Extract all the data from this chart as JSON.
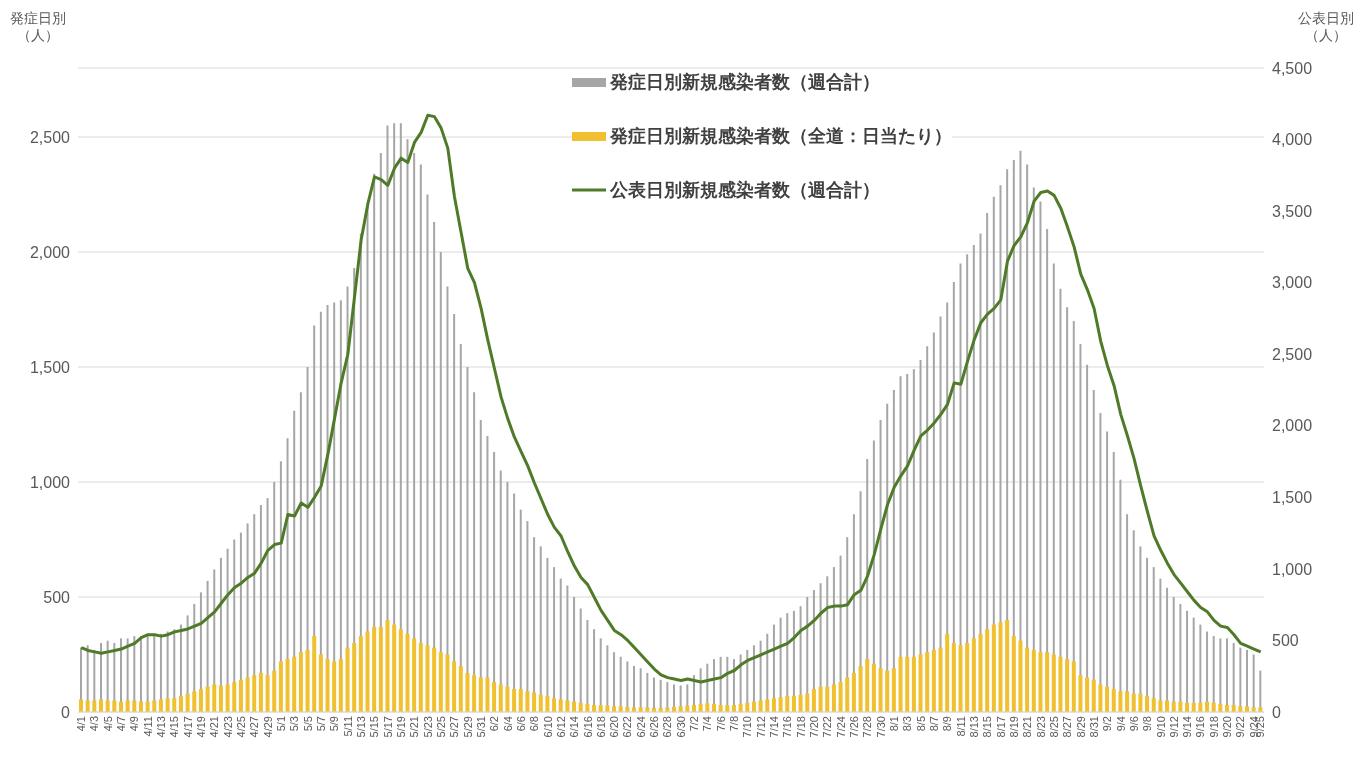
{
  "chart_data": {
    "type": "bar",
    "ylabel": "発症日別（人）",
    "y2label": "公表日別（人）",
    "categories": [
      "4/1",
      null,
      "4/3",
      null,
      "4/5",
      null,
      "4/7",
      null,
      "4/9",
      null,
      "4/11",
      null,
      "4/13",
      null,
      "4/15",
      null,
      "4/17",
      null,
      "4/19",
      null,
      "4/21",
      null,
      "4/23",
      null,
      "4/25",
      null,
      "4/27",
      null,
      "4/29",
      null,
      "5/1",
      null,
      "5/3",
      null,
      "5/5",
      null,
      "5/7",
      null,
      "5/9",
      null,
      "5/11",
      null,
      "5/13",
      null,
      "5/15",
      null,
      "5/17",
      null,
      "5/19",
      null,
      "5/21",
      null,
      "5/23",
      null,
      "5/25",
      null,
      "5/27",
      null,
      "5/29",
      null,
      "5/31",
      null,
      "6/2",
      null,
      "6/4",
      null,
      "6/6",
      null,
      "6/8",
      null,
      "6/10",
      null,
      "6/12",
      null,
      "6/14",
      null,
      "6/16",
      null,
      "6/18",
      null,
      "6/20",
      null,
      "6/22",
      null,
      "6/24",
      null,
      "6/26",
      null,
      "6/28",
      null,
      "6/30",
      null,
      "7/2",
      null,
      "7/4",
      null,
      "7/6",
      null,
      "7/8",
      null,
      "7/10",
      null,
      "7/12",
      null,
      "7/14",
      null,
      "7/16",
      null,
      "7/18",
      null,
      "7/20",
      null,
      "7/22",
      null,
      "7/24",
      null,
      "7/26",
      null,
      "7/28",
      null,
      "7/30",
      null,
      "8/1",
      null,
      "8/3",
      null,
      "8/5",
      null,
      "8/7",
      null,
      "8/9",
      null,
      "8/11",
      null,
      "8/13",
      null,
      "8/15",
      null,
      "8/17",
      null,
      "8/19",
      null,
      "8/21",
      null,
      "8/23",
      null,
      "8/25",
      null,
      "8/27",
      null,
      "8/29",
      null,
      "8/31",
      null,
      "9/2",
      null,
      "9/4",
      null,
      "9/6",
      null,
      "9/8",
      null,
      "9/10",
      null,
      "9/12",
      null,
      "9/14",
      null,
      "9/16",
      null,
      "9/18",
      null,
      "9/20",
      null,
      "9/22",
      null,
      "9/24",
      "9/25"
    ],
    "series": [
      {
        "name": "発症日別新規感染者数（週合計）",
        "color": "#a6a6a6",
        "values": [
          280,
          290,
          270,
          300,
          310,
          300,
          320,
          320,
          330,
          330,
          340,
          330,
          340,
          350,
          360,
          380,
          420,
          470,
          520,
          570,
          620,
          670,
          710,
          750,
          780,
          820,
          860,
          900,
          930,
          1000,
          1090,
          1190,
          1310,
          1390,
          1500,
          1680,
          1740,
          1770,
          1780,
          1790,
          1850,
          1930,
          2080,
          2200,
          2340,
          2430,
          2550,
          2560,
          2560,
          2490,
          2430,
          2380,
          2250,
          2130,
          2000,
          1850,
          1730,
          1600,
          1500,
          1390,
          1270,
          1200,
          1130,
          1050,
          1000,
          950,
          880,
          830,
          760,
          720,
          670,
          630,
          580,
          550,
          500,
          450,
          400,
          360,
          320,
          290,
          260,
          240,
          220,
          200,
          190,
          170,
          150,
          140,
          130,
          120,
          115,
          120,
          160,
          190,
          210,
          230,
          240,
          240,
          230,
          250,
          270,
          290,
          310,
          340,
          380,
          410,
          430,
          440,
          460,
          500,
          530,
          560,
          590,
          630,
          680,
          760,
          860,
          960,
          1100,
          1180,
          1270,
          1340,
          1400,
          1460,
          1470,
          1490,
          1530,
          1590,
          1650,
          1720,
          1780,
          1870,
          1950,
          1990,
          2030,
          2080,
          2170,
          2240,
          2290,
          2360,
          2400,
          2440,
          2380,
          2280,
          2220,
          2100,
          1950,
          1840,
          1760,
          1700,
          1600,
          1510,
          1400,
          1300,
          1220,
          1130,
          1010,
          860,
          790,
          720,
          670,
          630,
          580,
          540,
          500,
          470,
          440,
          410,
          380,
          350,
          330,
          320,
          320,
          300,
          280,
          270,
          250,
          180
        ]
      },
      {
        "name": "発症日別新規感染者数（全道：日当たり）",
        "color": "#f0c030",
        "values": [
          55,
          50,
          50,
          55,
          50,
          50,
          45,
          50,
          50,
          45,
          45,
          50,
          55,
          60,
          60,
          70,
          80,
          90,
          100,
          110,
          120,
          115,
          120,
          130,
          140,
          150,
          160,
          170,
          160,
          180,
          220,
          230,
          240,
          260,
          270,
          330,
          250,
          230,
          220,
          230,
          280,
          300,
          330,
          350,
          370,
          370,
          400,
          380,
          360,
          340,
          320,
          300,
          290,
          280,
          260,
          250,
          220,
          200,
          170,
          160,
          150,
          150,
          130,
          120,
          110,
          100,
          100,
          90,
          85,
          75,
          70,
          60,
          55,
          50,
          45,
          40,
          35,
          30,
          30,
          28,
          25,
          25,
          22,
          20,
          20,
          20,
          18,
          18,
          20,
          22,
          25,
          28,
          30,
          35,
          38,
          35,
          30,
          30,
          30,
          35,
          40,
          45,
          50,
          55,
          60,
          65,
          70,
          70,
          75,
          80,
          100,
          110,
          110,
          120,
          130,
          150,
          170,
          200,
          230,
          210,
          190,
          180,
          190,
          240,
          240,
          240,
          250,
          260,
          270,
          280,
          340,
          300,
          290,
          300,
          320,
          340,
          360,
          380,
          390,
          400,
          330,
          310,
          280,
          270,
          260,
          260,
          250,
          240,
          230,
          220,
          160,
          150,
          140,
          120,
          110,
          100,
          90,
          90,
          80,
          80,
          70,
          60,
          50,
          50,
          45,
          45,
          40,
          40,
          40,
          45,
          40,
          35,
          30,
          30,
          25,
          25,
          20,
          20
        ]
      },
      {
        "name": "公表日別新規感染者数（週合計）",
        "type": "line",
        "axis": "y2",
        "color": "#4f7a28",
        "values": [
          450,
          430,
          420,
          410,
          420,
          430,
          440,
          460,
          480,
          520,
          540,
          540,
          530,
          540,
          560,
          570,
          580,
          600,
          620,
          660,
          700,
          760,
          820,
          870,
          900,
          940,
          970,
          1040,
          1130,
          1170,
          1180,
          1380,
          1370,
          1460,
          1430,
          1500,
          1580,
          1800,
          2050,
          2300,
          2500,
          2900,
          3300,
          3550,
          3740,
          3720,
          3680,
          3800,
          3870,
          3840,
          3980,
          4050,
          4170,
          4160,
          4080,
          3940,
          3600,
          3350,
          3100,
          3000,
          2820,
          2600,
          2400,
          2200,
          2050,
          1920,
          1820,
          1720,
          1600,
          1490,
          1380,
          1290,
          1230,
          1120,
          1020,
          940,
          890,
          800,
          710,
          640,
          570,
          540,
          500,
          450,
          400,
          350,
          300,
          260,
          240,
          230,
          220,
          230,
          220,
          210,
          220,
          230,
          240,
          270,
          290,
          330,
          360,
          380,
          400,
          420,
          440,
          460,
          480,
          520,
          570,
          600,
          640,
          690,
          730,
          740,
          740,
          750,
          820,
          850,
          950,
          1100,
          1280,
          1450,
          1570,
          1650,
          1720,
          1830,
          1930,
          1970,
          2020,
          2080,
          2150,
          2300,
          2290,
          2450,
          2600,
          2720,
          2780,
          2820,
          2880,
          3150,
          3260,
          3320,
          3420,
          3570,
          3630,
          3640,
          3610,
          3520,
          3390,
          3250,
          3060,
          2950,
          2820,
          2590,
          2420,
          2280,
          2080,
          1930,
          1770,
          1580,
          1400,
          1230,
          1130,
          1040,
          960,
          900,
          840,
          780,
          730,
          700,
          640,
          600,
          590,
          540,
          480,
          460,
          440,
          420
        ]
      }
    ],
    "ylim": [
      0,
      2800
    ],
    "yticks": [
      0,
      500,
      {
        "value": 1000,
        "label": "1,000"
      },
      {
        "value": 1500,
        "label": "1,500"
      },
      {
        "value": 2000,
        "label": "2,000"
      },
      {
        "value": 2500,
        "label": "2,500"
      }
    ],
    "y2lim": [
      0,
      4500
    ],
    "y2ticks": [
      0,
      500,
      {
        "value": 1000,
        "label": "1,000"
      },
      {
        "value": 1500,
        "label": "1,500"
      },
      {
        "value": 2000,
        "label": "2,000"
      },
      {
        "value": 2500,
        "label": "2,500"
      },
      {
        "value": 3000,
        "label": "3,000"
      },
      {
        "value": 3500,
        "label": "3,500"
      },
      {
        "value": 4000,
        "label": "4,000"
      },
      {
        "value": 4500,
        "label": "4,500"
      }
    ],
    "grid": "y",
    "legend": "top",
    "marker": "none"
  }
}
